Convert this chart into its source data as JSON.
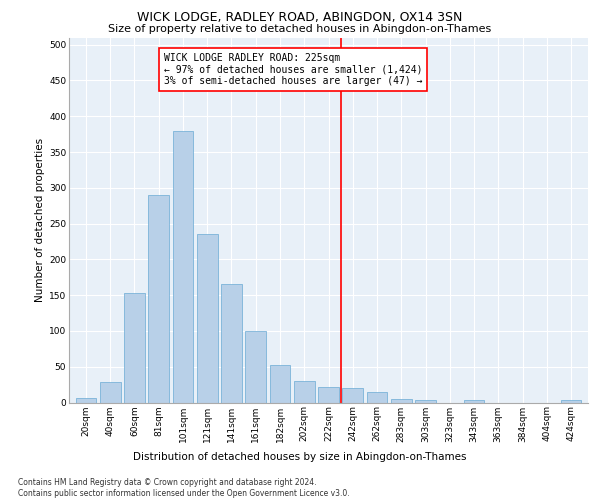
{
  "title": "WICK LODGE, RADLEY ROAD, ABINGDON, OX14 3SN",
  "subtitle": "Size of property relative to detached houses in Abingdon-on-Thames",
  "xlabel": "Distribution of detached houses by size in Abingdon-on-Thames",
  "ylabel": "Number of detached properties",
  "categories": [
    "20sqm",
    "40sqm",
    "60sqm",
    "81sqm",
    "101sqm",
    "121sqm",
    "141sqm",
    "161sqm",
    "182sqm",
    "202sqm",
    "222sqm",
    "242sqm",
    "262sqm",
    "283sqm",
    "303sqm",
    "323sqm",
    "343sqm",
    "363sqm",
    "384sqm",
    "404sqm",
    "424sqm"
  ],
  "values": [
    6,
    28,
    153,
    290,
    380,
    236,
    166,
    100,
    52,
    30,
    22,
    20,
    14,
    5,
    4,
    0,
    4,
    0,
    0,
    0,
    4
  ],
  "bar_color": "#b8d0e8",
  "bar_edge_color": "#6aaad4",
  "vline_x": 10.5,
  "vline_color": "red",
  "annotation_text": "WICK LODGE RADLEY ROAD: 225sqm\n← 97% of detached houses are smaller (1,424)\n3% of semi-detached houses are larger (47) →",
  "annotation_box_color": "white",
  "annotation_box_edge": "red",
  "ylim": [
    0,
    510
  ],
  "yticks": [
    0,
    50,
    100,
    150,
    200,
    250,
    300,
    350,
    400,
    450,
    500
  ],
  "background_color": "#e8f0f8",
  "grid_color": "white",
  "footer": "Contains HM Land Registry data © Crown copyright and database right 2024.\nContains public sector information licensed under the Open Government Licence v3.0.",
  "title_fontsize": 9,
  "subtitle_fontsize": 8,
  "axis_label_fontsize": 7.5,
  "tick_fontsize": 6.5,
  "annotation_fontsize": 7,
  "footer_fontsize": 5.5
}
